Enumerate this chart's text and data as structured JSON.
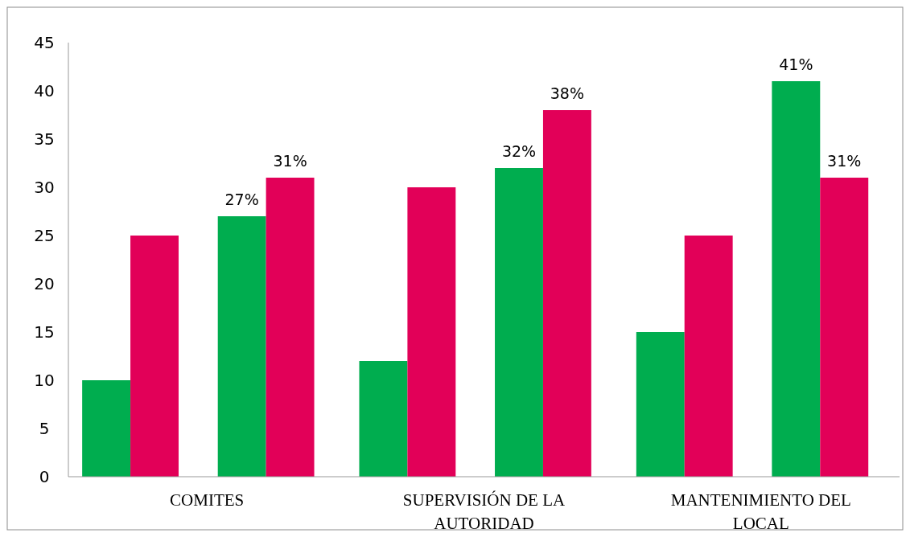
{
  "chart_data": {
    "type": "bar",
    "categories": [
      "COMITES",
      "SUPERVISIÓN DE LA AUTORIDAD",
      "MANTENIMIENTO DEL LOCAL"
    ],
    "series": [
      {
        "color": "#00ad4f",
        "values": [
          10,
          12,
          15
        ]
      },
      {
        "color": "#e20058",
        "values": [
          25,
          30,
          25
        ]
      },
      {
        "color": "#00ad4f",
        "values": [
          27,
          32,
          41
        ],
        "value_labels": [
          "27%",
          "32%",
          "41%"
        ]
      },
      {
        "color": "#e20058",
        "values": [
          31,
          38,
          31
        ],
        "value_labels": [
          "31%",
          "38%",
          "31%"
        ]
      }
    ],
    "ylim": [
      0,
      45
    ],
    "yticks": [
      0,
      5,
      10,
      15,
      20,
      25,
      30,
      35,
      40,
      45
    ],
    "grid": false
  }
}
